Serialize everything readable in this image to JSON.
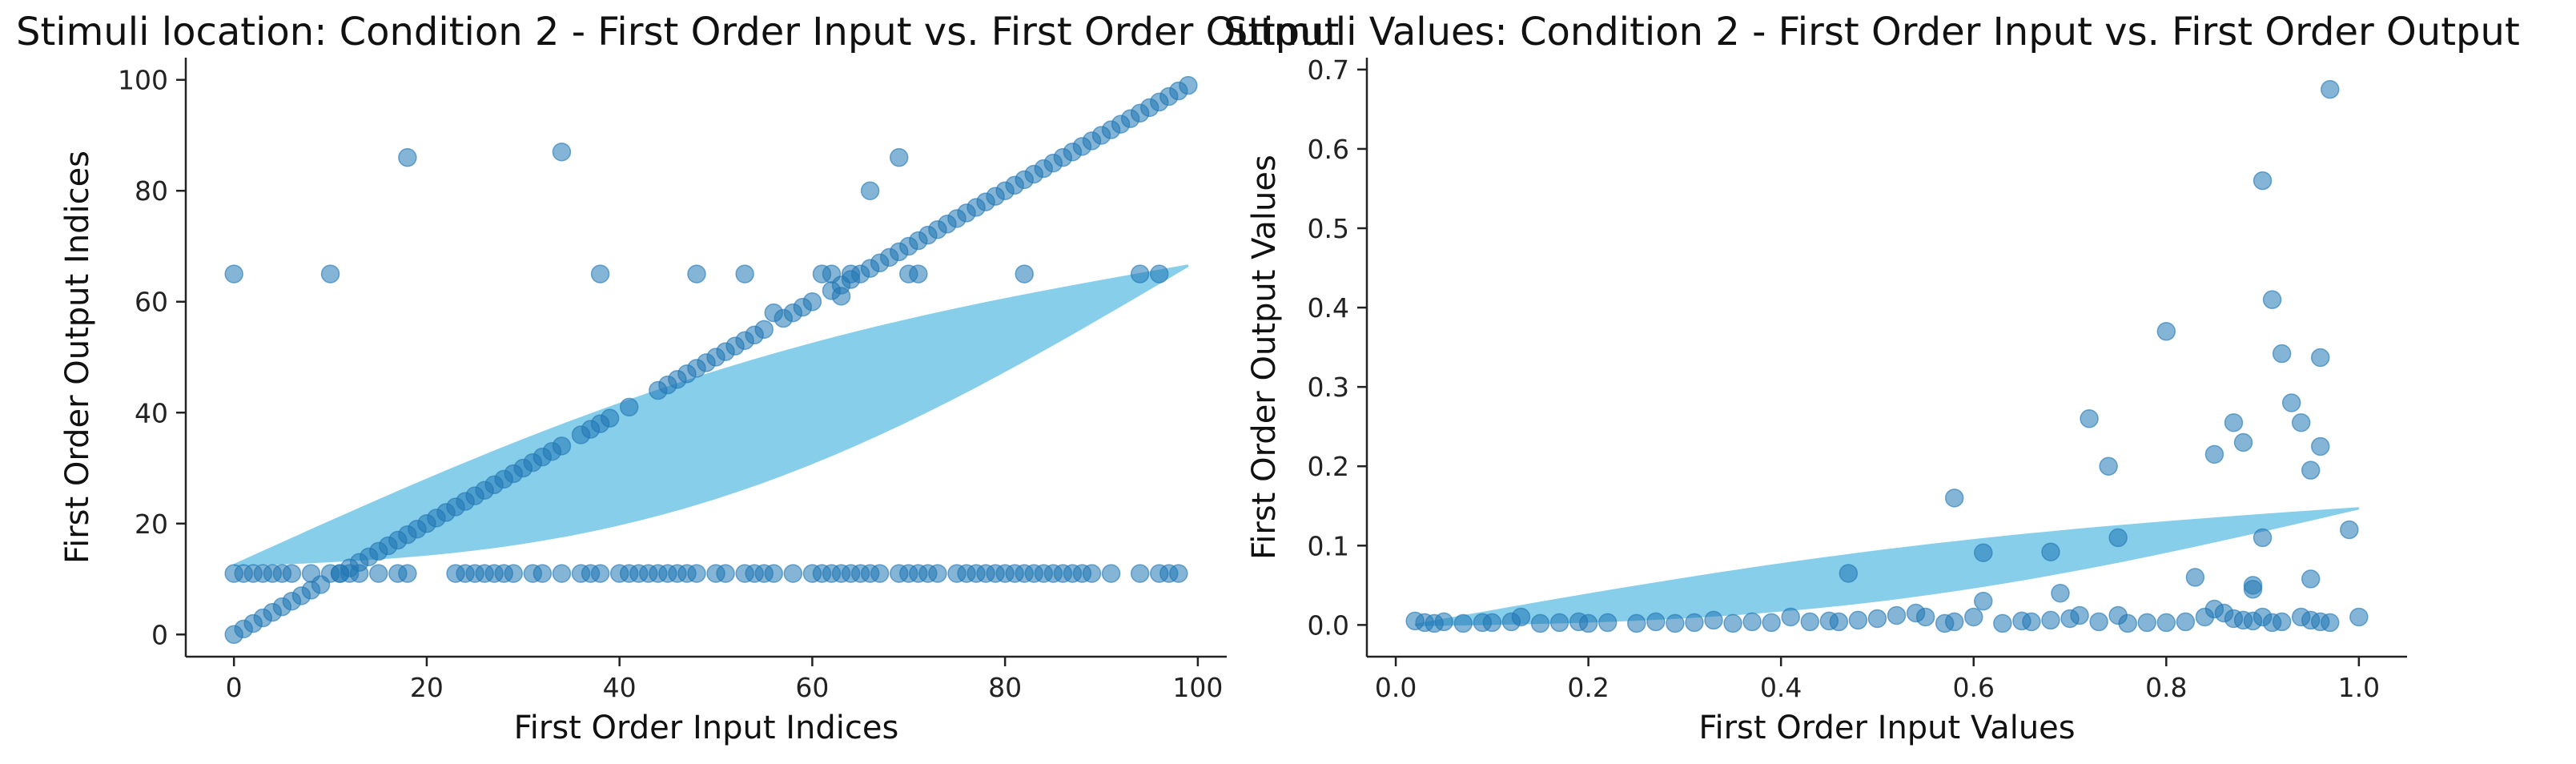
{
  "chart_data": [
    {
      "type": "scatter",
      "title": "Stimuli location: Condition 2 - First Order Input vs. First Order Output",
      "xlabel": "First Order Input Indices",
      "ylabel": "First Order Output Indices",
      "xlim": [
        -5,
        103
      ],
      "ylim": [
        -4,
        104
      ],
      "xticks": [
        0,
        20,
        40,
        60,
        80,
        100
      ],
      "yticks": [
        0,
        20,
        40,
        60,
        80,
        100
      ],
      "grid": false,
      "point_color": "#1f77b4",
      "fit_color": "#87ceeb",
      "fit_x_range": [
        0,
        99
      ],
      "fit_y_range": [
        12.5,
        66.5
      ],
      "series": [
        {
          "diagonal_x": [
            0,
            1,
            2,
            3,
            4,
            5,
            6,
            7,
            8,
            9,
            11,
            12,
            13,
            14,
            15,
            16,
            17,
            18,
            19,
            20,
            21,
            22,
            23,
            24,
            25,
            26,
            27,
            28,
            29,
            30,
            31,
            32,
            33,
            34,
            36,
            37,
            38,
            39,
            41,
            44,
            45,
            46,
            47,
            48,
            49,
            50,
            51,
            52,
            53,
            54,
            55,
            57,
            58,
            59,
            60,
            62,
            63,
            64,
            65,
            66,
            67,
            68,
            69,
            70,
            71,
            72,
            73,
            74,
            75,
            76,
            77,
            78,
            79,
            80,
            81,
            82,
            83,
            84,
            85,
            86,
            87,
            88,
            89,
            90,
            91,
            92,
            93,
            94,
            95,
            96,
            97,
            98,
            99
          ],
          "diagonal_y": [
            0,
            1,
            2,
            3,
            4,
            5,
            6,
            7,
            8,
            9,
            11,
            12,
            13,
            14,
            15,
            16,
            17,
            18,
            19,
            20,
            21,
            22,
            23,
            24,
            25,
            26,
            27,
            28,
            29,
            30,
            31,
            32,
            33,
            34,
            36,
            37,
            38,
            39,
            41,
            44,
            45,
            46,
            47,
            48,
            49,
            50,
            51,
            52,
            53,
            54,
            55,
            57,
            58,
            59,
            60,
            62,
            63,
            64,
            65,
            66,
            67,
            68,
            69,
            70,
            71,
            72,
            73,
            74,
            75,
            76,
            77,
            78,
            79,
            80,
            81,
            82,
            83,
            84,
            85,
            86,
            87,
            88,
            89,
            90,
            91,
            92,
            93,
            94,
            95,
            96,
            97,
            98,
            99
          ],
          "band_y": 11,
          "band_x": [
            0,
            1,
            2,
            3,
            4,
            5,
            6,
            8,
            10,
            11,
            12,
            13,
            15,
            17,
            18,
            23,
            24,
            25,
            26,
            27,
            28,
            29,
            31,
            32,
            34,
            36,
            37,
            38,
            40,
            41,
            42,
            43,
            44,
            45,
            46,
            47,
            48,
            50,
            51,
            53,
            54,
            55,
            56,
            58,
            60,
            61,
            62,
            63,
            64,
            65,
            66,
            67,
            69,
            70,
            71,
            72,
            73,
            75,
            76,
            77,
            78,
            79,
            80,
            81,
            82,
            83,
            84,
            85,
            86,
            87,
            88,
            89,
            91,
            94,
            96,
            97,
            98
          ],
          "other_x": [
            0,
            10,
            18,
            34,
            38,
            48,
            53,
            56,
            61,
            62,
            63,
            64,
            66,
            69,
            70,
            71,
            82,
            94,
            96
          ],
          "other_y": [
            65,
            65,
            86,
            87,
            65,
            65,
            65,
            58,
            65,
            65,
            61,
            65,
            80,
            86,
            65,
            65,
            65,
            65,
            65
          ]
        }
      ]
    },
    {
      "type": "scatter",
      "title": "Stimuli Values: Condition 2 - First Order Input vs. First Order Output",
      "xlabel": "First Order Input Values",
      "ylabel": "First Order Output Values",
      "xlim": [
        -0.03,
        1.05
      ],
      "ylim": [
        -0.04,
        0.715
      ],
      "xticks": [
        0.0,
        0.2,
        0.4,
        0.6,
        0.8,
        1.0
      ],
      "xtick_labels": [
        "0.0",
        "0.2",
        "0.4",
        "0.6",
        "0.8",
        "1.0"
      ],
      "yticks": [
        0.0,
        0.1,
        0.2,
        0.3,
        0.4,
        0.5,
        0.6,
        0.7
      ],
      "ytick_labels": [
        "0.0",
        "0.1",
        "0.2",
        "0.3",
        "0.4",
        "0.5",
        "0.6",
        "0.7"
      ],
      "grid": false,
      "point_color": "#1f77b4",
      "fit_color": "#87ceeb",
      "fit_x_range": [
        0.02,
        1.0
      ],
      "fit_y_range": [
        0.0,
        0.147
      ],
      "series": [
        {
          "x": [
            0.02,
            0.03,
            0.04,
            0.05,
            0.07,
            0.09,
            0.1,
            0.12,
            0.13,
            0.15,
            0.17,
            0.19,
            0.2,
            0.22,
            0.25,
            0.27,
            0.29,
            0.31,
            0.33,
            0.35,
            0.37,
            0.39,
            0.41,
            0.43,
            0.45,
            0.46,
            0.48,
            0.5,
            0.52,
            0.54,
            0.55,
            0.57,
            0.58,
            0.6,
            0.61,
            0.63,
            0.65,
            0.66,
            0.68,
            0.7,
            0.71,
            0.73,
            0.75,
            0.76,
            0.8,
            0.82,
            0.84,
            0.85,
            0.86,
            0.87,
            0.88,
            0.89,
            0.9,
            0.91,
            0.92,
            0.94,
            0.95,
            0.96,
            0.97,
            1.0,
            0.58,
            0.61,
            0.68,
            0.72,
            0.74,
            0.8,
            0.85,
            0.87,
            0.88,
            0.9,
            0.91,
            0.92,
            0.93,
            0.94,
            0.95,
            0.96,
            0.97,
            0.96,
            0.89,
            0.99,
            0.83,
            0.47,
            0.75,
            0.69,
            0.89,
            0.95,
            0.9,
            0.78
          ],
          "y": [
            0.005,
            0.003,
            0.002,
            0.004,
            0.002,
            0.003,
            0.003,
            0.004,
            0.01,
            0.002,
            0.003,
            0.004,
            0.002,
            0.003,
            0.002,
            0.004,
            0.002,
            0.003,
            0.006,
            0.002,
            0.004,
            0.003,
            0.01,
            0.004,
            0.005,
            0.004,
            0.006,
            0.008,
            0.012,
            0.015,
            0.01,
            0.002,
            0.004,
            0.01,
            0.03,
            0.002,
            0.005,
            0.004,
            0.006,
            0.008,
            0.012,
            0.004,
            0.012,
            0.002,
            0.003,
            0.004,
            0.01,
            0.02,
            0.015,
            0.008,
            0.006,
            0.005,
            0.01,
            0.003,
            0.004,
            0.01,
            0.006,
            0.004,
            0.003,
            0.01,
            0.16,
            0.091,
            0.092,
            0.26,
            0.2,
            0.37,
            0.215,
            0.255,
            0.23,
            0.56,
            0.41,
            0.342,
            0.28,
            0.255,
            0.195,
            0.225,
            0.675,
            0.337,
            0.05,
            0.12,
            0.06,
            0.065,
            0.11,
            0.04,
            0.045,
            0.058,
            0.11,
            0.003
          ]
        }
      ]
    }
  ]
}
